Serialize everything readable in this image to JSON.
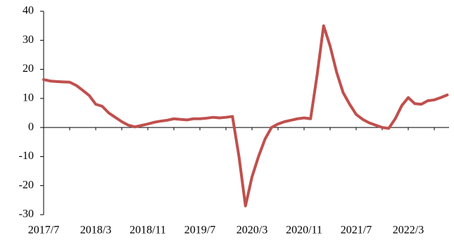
{
  "chart_data": {
    "type": "line",
    "categories": [
      "2017/7",
      null,
      null,
      null,
      null,
      null,
      null,
      null,
      "2018/3",
      null,
      null,
      null,
      null,
      null,
      null,
      null,
      "2018/11",
      null,
      null,
      null,
      null,
      null,
      null,
      null,
      "2019/7",
      null,
      null,
      null,
      null,
      null,
      null,
      null,
      "2020/3",
      null,
      null,
      null,
      null,
      null,
      null,
      null,
      "2020/11",
      null,
      null,
      null,
      null,
      null,
      null,
      null,
      "2021/7",
      null,
      null,
      null,
      null,
      null,
      null,
      null,
      "2022/3",
      null,
      null,
      null,
      null,
      null,
      null
    ],
    "series": [
      {
        "name": null,
        "color": "#c0504d",
        "values": [
          16.5,
          16,
          15.8,
          15.7,
          15.6,
          14.5,
          12.8,
          11,
          8,
          7.3,
          5,
          3.5,
          2,
          0.8,
          0.2,
          0.7,
          1.2,
          1.8,
          2.2,
          2.5,
          3,
          2.8,
          2.6,
          3,
          3,
          3.2,
          3.5,
          3.3,
          3.5,
          3.8,
          -10,
          -27,
          -17,
          -10,
          -4,
          0,
          1.2,
          2,
          2.5,
          3,
          3.3,
          3,
          18,
          35,
          28,
          19,
          12,
          8,
          4.5,
          2.8,
          1.6,
          0.8,
          0,
          -0.3,
          3,
          7.5,
          10.3,
          8.2,
          8,
          9.2,
          9.5,
          10.3,
          11.2
        ]
      }
    ],
    "ylim": [
      -30,
      40
    ],
    "yticks": [
      -30,
      -20,
      -10,
      0,
      10,
      20,
      30,
      40
    ],
    "grid": false
  }
}
